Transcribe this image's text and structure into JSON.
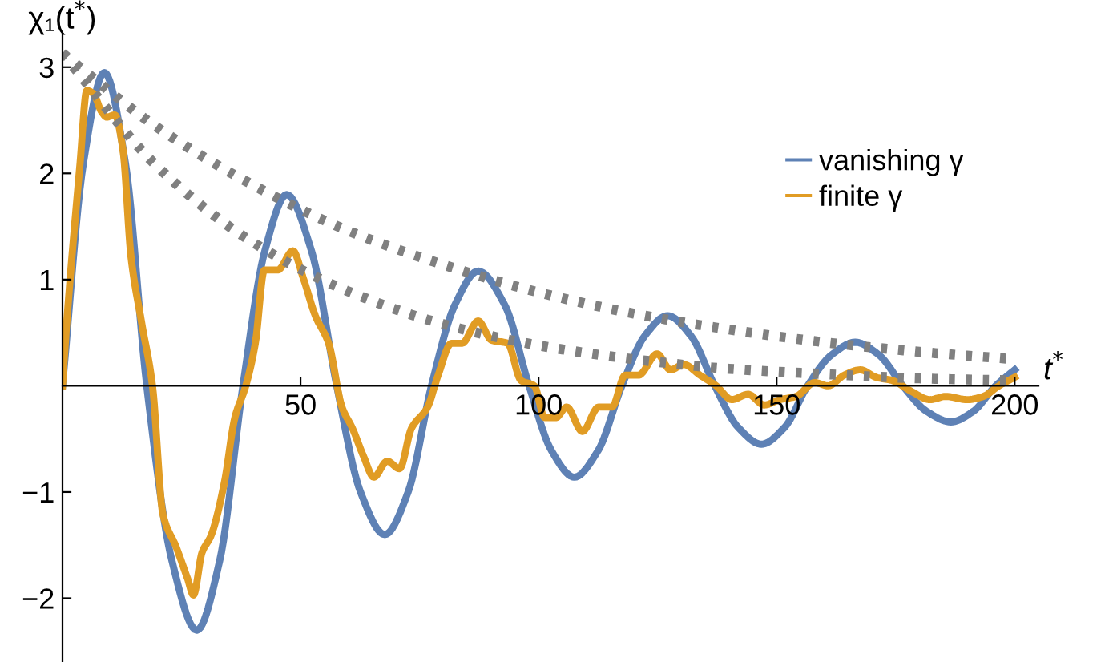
{
  "chart_data": {
    "type": "line",
    "xlabel": "t$^{*}$",
    "ylabel": "χ₁(t$^{*}$)",
    "xlim": [
      0,
      205
    ],
    "ylim": [
      -2.6,
      3.3
    ],
    "xticks": [
      50,
      100,
      150,
      200
    ],
    "yticks": [
      {
        "value": -2,
        "label": "−2"
      },
      {
        "value": -1,
        "label": "−1"
      },
      1,
      2,
      3
    ],
    "grid": false,
    "legend": "top right",
    "marker": "none",
    "series": [
      {
        "name": "vanishing γ",
        "color": "#5e81b5",
        "line_style": "solid",
        "x": [
          0,
          4.4,
          8.8,
          13.2,
          17.7,
          23,
          28.2,
          33,
          37.9,
          42.5,
          47.1,
          52.3,
          57.6,
          62.6,
          67.7,
          72.6,
          77.5,
          82.4,
          87.3,
          92.9,
          98,
          102.7,
          107.5,
          112.5,
          117.5,
          122.3,
          127.1,
          132,
          137,
          141.9,
          146.8,
          151.7,
          156.5,
          161.5,
          166.5,
          171.5,
          176.5,
          181.5,
          186.6,
          191.3,
          196,
          200
        ],
        "values": [
          0,
          2.1,
          2.95,
          2.1,
          0,
          -1.65,
          -2.3,
          -1.65,
          0,
          1.27,
          1.8,
          1.27,
          0,
          -1.0,
          -1.4,
          -1.0,
          0,
          0.76,
          1.08,
          0.76,
          0,
          -0.61,
          -0.86,
          -0.61,
          0,
          0.47,
          0.66,
          0.47,
          0,
          -0.39,
          -0.55,
          -0.39,
          0,
          0.29,
          0.41,
          0.29,
          0,
          -0.24,
          -0.34,
          -0.24,
          0,
          0.15
        ]
      },
      {
        "name": "finite γ",
        "color": "#e19c24",
        "line_style": "solid",
        "x": [
          0,
          0.9,
          3.7,
          5.1,
          6.5,
          8.2,
          9.3,
          11,
          12.7,
          14.4,
          16.6,
          18.9,
          21.1,
          23.9,
          26.3,
          27.5,
          29.3,
          31.2,
          34,
          36.2,
          38.5,
          40.5,
          42.4,
          45.2,
          48.4,
          50.6,
          53.1,
          55.9,
          58.7,
          60.9,
          63.2,
          65.4,
          68.2,
          70.8,
          73.3,
          76.7,
          78.9,
          81.7,
          83.9,
          87.3,
          90.1,
          93.5,
          96.3,
          99.1,
          101.3,
          103.6,
          105.9,
          109.2,
          112.6,
          115.4,
          118.2,
          121,
          124.9,
          127.7,
          130.5,
          133.9,
          137.3,
          140.6,
          144,
          147.4,
          150.7,
          154.1,
          158,
          160.8,
          164.2,
          167.6,
          170.9,
          174.3,
          178.2,
          182.2,
          185.5,
          190,
          193.4,
          196.7,
          200
        ],
        "values": [
          0,
          0.6,
          2.1,
          2.78,
          2.75,
          2.58,
          2.53,
          2.55,
          2.22,
          1.21,
          0.6,
          0,
          -1.21,
          -1.52,
          -1.82,
          -1.97,
          -1.57,
          -1.41,
          -0.91,
          -0.3,
          0,
          0.4,
          1.09,
          1.09,
          1.27,
          1.01,
          0.66,
          0.4,
          -0.2,
          -0.4,
          -0.66,
          -0.86,
          -0.71,
          -0.78,
          -0.4,
          -0.2,
          0.1,
          0.4,
          0.4,
          0.61,
          0.43,
          0.4,
          0.05,
          0,
          -0.3,
          -0.3,
          -0.2,
          -0.43,
          -0.2,
          -0.2,
          0.1,
          0.1,
          0.3,
          0.15,
          0.2,
          0.1,
          0,
          -0.13,
          -0.08,
          -0.18,
          -0.13,
          -0.1,
          0.03,
          0,
          0.1,
          0.15,
          0.08,
          0.05,
          -0.05,
          -0.13,
          -0.1,
          -0.13,
          -0.1,
          0,
          0.08
        ]
      },
      {
        "color": "#808080",
        "line_style": "dotted",
        "x": [
          0,
          20,
          40,
          60,
          80,
          100,
          120,
          140,
          160,
          180,
          200
        ],
        "values": [
          3.13,
          2.43,
          1.89,
          1.46,
          1.14,
          0.88,
          0.68,
          0.53,
          0.41,
          0.32,
          0.25
        ]
      },
      {
        "color": "#808080",
        "line_style": "dotted",
        "x": [
          0,
          20,
          40,
          60,
          80,
          100,
          120,
          140,
          160,
          180,
          200
        ],
        "values": [
          3.13,
          2.06,
          1.35,
          0.89,
          0.58,
          0.38,
          0.25,
          0.16,
          0.11,
          0.07,
          0.05
        ]
      }
    ]
  }
}
